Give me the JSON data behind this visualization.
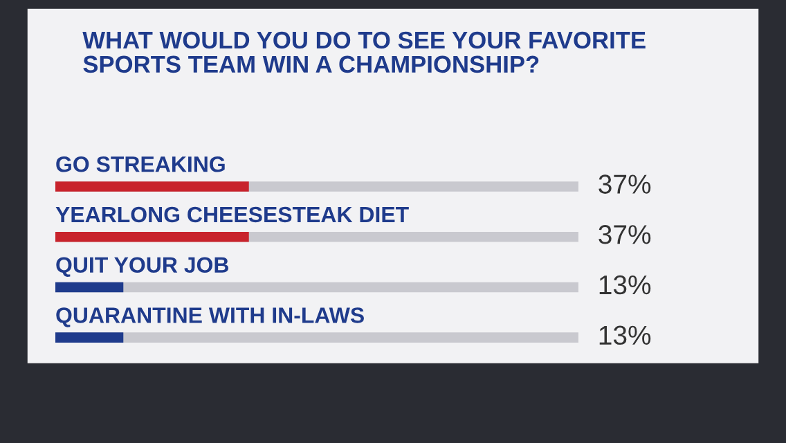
{
  "chart_data": {
    "type": "bar",
    "orientation": "horizontal",
    "title": "WHAT WOULD YOU DO TO SEE YOUR FAVORITE\nSPORTS TEAM WIN A CHAMPIONSHIP?",
    "categories": [
      "GO STREAKING",
      "YEARLONG CHEESESTEAK DIET",
      "QUIT YOUR JOB",
      "QUARANTINE WITH IN-LAWS"
    ],
    "values": [
      37,
      37,
      13,
      13
    ],
    "colors": [
      "#c8232c",
      "#c8232c",
      "#1f3b8c",
      "#1f3b8c"
    ],
    "value_labels": [
      "37%",
      "37%",
      "13%",
      "13%"
    ],
    "xlim": [
      0,
      100
    ]
  }
}
